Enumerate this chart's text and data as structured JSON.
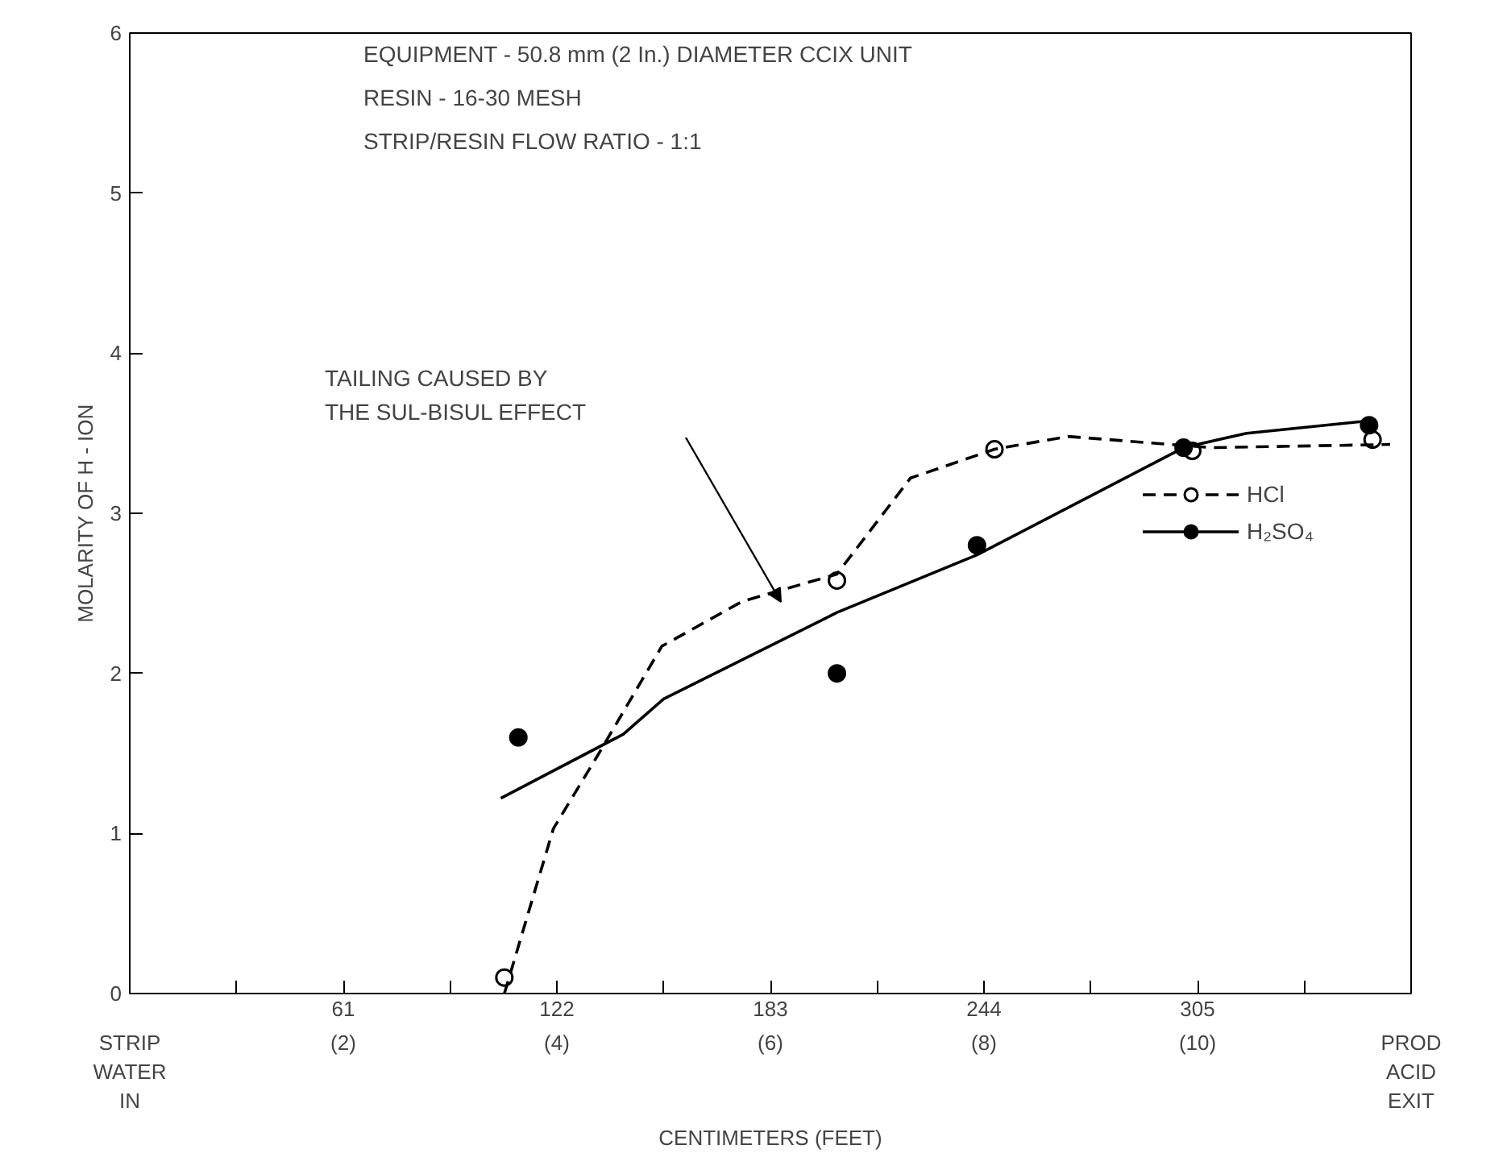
{
  "chart_data": {
    "type": "line",
    "xlabel": "CENTIMETERS (FEET)",
    "ylabel": "MOLARITY OF H - ION",
    "xlim": [
      0,
      366
    ],
    "ylim": [
      0,
      6
    ],
    "xticks": [
      {
        "value": 0,
        "label": null
      },
      {
        "value": 30.5,
        "label": null
      },
      61,
      {
        "value": 91.5,
        "label": null
      },
      122,
      {
        "value": 152.5,
        "label": null
      },
      183,
      {
        "value": 213.5,
        "label": null
      },
      244,
      {
        "value": 274.5,
        "label": null
      },
      305,
      {
        "value": 335.5,
        "label": null
      },
      {
        "value": 366,
        "label": null
      }
    ],
    "x2lim": [
      0,
      12
    ],
    "x2ticks": [
      {
        "value": 0,
        "label": "STRIP\nWATER\nIN"
      },
      {
        "value": 2,
        "label": "(2)"
      },
      {
        "value": 4,
        "label": "(4)"
      },
      {
        "value": 6,
        "label": "(6)"
      },
      {
        "value": 8,
        "label": "(8)"
      },
      {
        "value": 10,
        "label": "(10)"
      },
      {
        "value": 12,
        "label": "PROD\nACID\nEXIT"
      }
    ],
    "yticks": [
      0,
      1,
      2,
      3,
      4,
      5,
      6
    ],
    "grid": false,
    "legend": "right",
    "series": [
      {
        "name": "HCl",
        "type": "scatter",
        "marker": "circle",
        "color": "#ffffff",
        "x": [
          107,
          202,
          247,
          303.5,
          355
        ],
        "values": [
          0.1,
          2.58,
          3.4,
          3.39,
          3.46
        ]
      },
      {
        "line_style": "dashed",
        "color": "#000000",
        "x": [
          107,
          121,
          134,
          152,
          175,
          202,
          223,
          247,
          268,
          309,
          360
        ],
        "values": [
          0,
          1.03,
          1.5,
          2.17,
          2.45,
          2.62,
          3.22,
          3.4,
          3.48,
          3.41,
          3.43
        ]
      },
      {
        "name": "H₂SO₄",
        "type": "scatter",
        "marker": "circle",
        "color": "#000000",
        "x": [
          111,
          202,
          242,
          301,
          354
        ],
        "values": [
          1.6,
          2.0,
          2.8,
          3.41,
          3.55
        ]
      },
      {
        "line_style": "solid",
        "color": "#000000",
        "x": [
          106,
          141,
          152.5,
          202,
          242,
          301,
          319,
          355
        ],
        "values": [
          1.22,
          1.62,
          1.84,
          2.38,
          2.74,
          3.41,
          3.5,
          3.58
        ]
      }
    ],
    "annotations": [
      "EQUIPMENT - 50.8 mm (2 In.) DIAMETER CCIX UNIT",
      "RESIN - 16-30 MESH",
      "STRIP/RESIN FLOW RATIO - 1:1",
      "TAILING CAUSED BY\nTHE SUL-BISUL EFFECT"
    ]
  }
}
